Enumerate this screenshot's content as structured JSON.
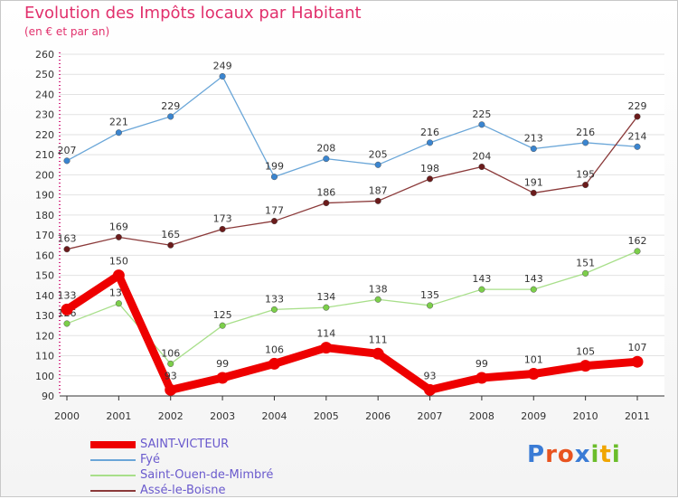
{
  "title": "Evolution des Impôts locaux par Habitant",
  "subtitle": "(en € et par an)",
  "brand": {
    "text": "Proxiti",
    "letter_colors": [
      "#3a7bd5",
      "#e8531f",
      "#e8531f",
      "#3a7bd5",
      "#6bbd2a",
      "#f0a500",
      "#6bbd2a"
    ]
  },
  "chart_data": {
    "type": "line",
    "title": "Evolution des Impôts locaux par Habitant",
    "subtitle": "(en € et par an)",
    "xlabel": "",
    "ylabel": "",
    "ylim": [
      90,
      260
    ],
    "y_ticks": [
      90,
      100,
      110,
      120,
      130,
      140,
      150,
      160,
      170,
      180,
      190,
      200,
      210,
      220,
      230,
      240,
      250,
      260
    ],
    "categories": [
      "2000",
      "2001",
      "2002",
      "2003",
      "2004",
      "2005",
      "2006",
      "2007",
      "2008",
      "2009",
      "2010",
      "2011"
    ],
    "legend_position": "bottom-left",
    "series": [
      {
        "name": "Fyé",
        "color": "#6aa6d8",
        "marker": "#3a85d0",
        "width": "thin",
        "values": [
          207,
          221,
          229,
          249,
          199,
          208,
          205,
          216,
          225,
          213,
          216,
          214
        ]
      },
      {
        "name": "Assé-le-Boisne",
        "color": "#8b3a3a",
        "marker": "#6b1b1b",
        "width": "thin",
        "values": [
          163,
          169,
          165,
          173,
          177,
          186,
          187,
          198,
          204,
          191,
          195,
          229
        ]
      },
      {
        "name": "Saint-Ouen-de-Mimbré",
        "color": "#a8df8a",
        "marker": "#7ccf4a",
        "width": "thin",
        "values": [
          126,
          136,
          106,
          125,
          133,
          134,
          138,
          135,
          143,
          143,
          151,
          162
        ]
      },
      {
        "name": "SAINT-VICTEUR",
        "color": "#ee0000",
        "marker": "#ee0000",
        "width": "thick",
        "values": [
          133,
          150,
          93,
          99,
          106,
          114,
          111,
          93,
          99,
          101,
          105,
          107
        ]
      }
    ],
    "legend": [
      "SAINT-VICTEUR",
      "Fyé",
      "Saint-Ouen-de-Mimbré",
      "Assé-le-Boisne"
    ]
  }
}
